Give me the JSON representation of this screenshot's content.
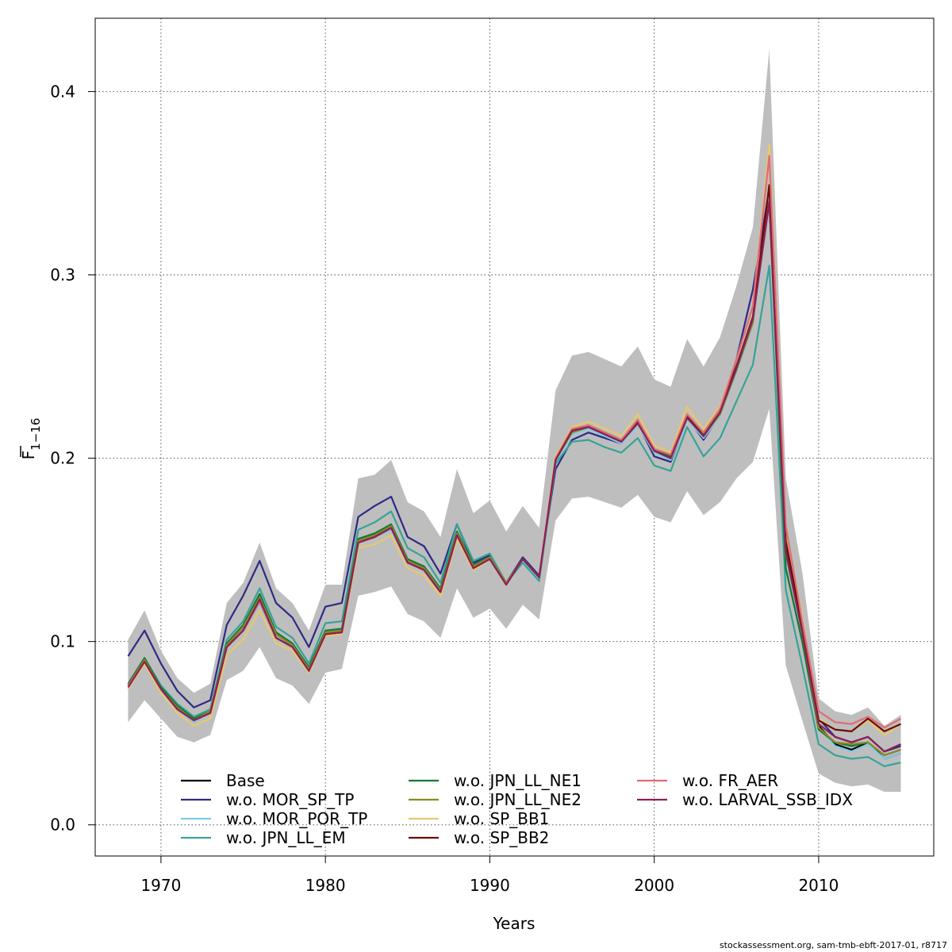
{
  "footer": "stockassessment.org, sam-tmb-ebft-2017-01, r8717",
  "chart_data": {
    "type": "line",
    "xlabel": "Years",
    "ylabel_main": "F",
    "ylabel_sub": "1−16",
    "xlim": [
      1966,
      2017
    ],
    "ylim": [
      -0.017,
      0.44
    ],
    "x_ticks": [
      1970,
      1980,
      1990,
      2000,
      2010
    ],
    "y_ticks": [
      0.0,
      0.1,
      0.2,
      0.3,
      0.4
    ],
    "y_tick_labels": [
      "0.0",
      "0.1",
      "0.2",
      "0.3",
      "0.4"
    ],
    "grid": true,
    "legend_position": "bottom",
    "x": [
      1968,
      1969,
      1970,
      1971,
      1972,
      1973,
      1974,
      1975,
      1976,
      1977,
      1978,
      1979,
      1980,
      1981,
      1982,
      1983,
      1984,
      1985,
      1986,
      1987,
      1988,
      1989,
      1990,
      1991,
      1992,
      1993,
      1994,
      1995,
      1996,
      1997,
      1998,
      1999,
      2000,
      2001,
      2002,
      2003,
      2004,
      2005,
      2006,
      2007,
      2008,
      2009,
      2010,
      2011,
      2012,
      2013,
      2014,
      2015
    ],
    "band": {
      "color": "#bebebe",
      "upper": [
        0.101,
        0.117,
        0.095,
        0.08,
        0.072,
        0.077,
        0.121,
        0.132,
        0.154,
        0.129,
        0.121,
        0.106,
        0.131,
        0.131,
        0.189,
        0.191,
        0.199,
        0.176,
        0.171,
        0.157,
        0.194,
        0.17,
        0.177,
        0.16,
        0.174,
        0.162,
        0.237,
        0.256,
        0.258,
        0.254,
        0.25,
        0.261,
        0.243,
        0.239,
        0.265,
        0.25,
        0.266,
        0.294,
        0.326,
        0.423,
        0.189,
        0.138,
        0.069,
        0.062,
        0.06,
        0.064,
        0.054,
        0.06
      ],
      "lower": [
        0.056,
        0.068,
        0.058,
        0.048,
        0.045,
        0.049,
        0.079,
        0.084,
        0.097,
        0.08,
        0.076,
        0.066,
        0.083,
        0.085,
        0.125,
        0.127,
        0.13,
        0.115,
        0.111,
        0.102,
        0.129,
        0.113,
        0.118,
        0.107,
        0.12,
        0.112,
        0.166,
        0.178,
        0.179,
        0.176,
        0.173,
        0.18,
        0.168,
        0.165,
        0.182,
        0.169,
        0.176,
        0.189,
        0.198,
        0.227,
        0.087,
        0.057,
        0.028,
        0.023,
        0.021,
        0.022,
        0.018,
        0.018
      ]
    },
    "series": [
      {
        "name": "Base",
        "color": "#000000",
        "values": [
          0.076,
          0.09,
          0.074,
          0.064,
          0.057,
          0.062,
          0.098,
          0.108,
          0.124,
          0.104,
          0.098,
          0.085,
          0.105,
          0.106,
          0.155,
          0.158,
          0.163,
          0.144,
          0.14,
          0.128,
          0.159,
          0.141,
          0.146,
          0.132,
          0.145,
          0.135,
          0.199,
          0.214,
          0.217,
          0.213,
          0.209,
          0.219,
          0.204,
          0.2,
          0.222,
          0.212,
          0.224,
          0.248,
          0.274,
          0.349,
          0.148,
          0.105,
          0.054,
          0.044,
          0.041,
          0.045,
          0.036,
          0.039
        ]
      },
      {
        "name": "w.o. MOR_SP_TP",
        "color": "#2d2a87",
        "values": [
          0.092,
          0.106,
          0.088,
          0.073,
          0.064,
          0.068,
          0.109,
          0.125,
          0.144,
          0.121,
          0.113,
          0.097,
          0.119,
          0.121,
          0.168,
          0.174,
          0.179,
          0.157,
          0.152,
          0.137,
          0.164,
          0.143,
          0.147,
          0.132,
          0.146,
          0.136,
          0.194,
          0.21,
          0.214,
          0.211,
          0.208,
          0.219,
          0.201,
          0.198,
          0.222,
          0.21,
          0.224,
          0.254,
          0.292,
          0.347,
          0.152,
          0.108,
          0.058,
          0.048,
          0.045,
          0.048,
          0.04,
          0.043
        ]
      },
      {
        "name": "w.o. MOR_POR_TP",
        "color": "#7ecce8",
        "values": [
          0.074,
          0.088,
          0.073,
          0.063,
          0.056,
          0.061,
          0.097,
          0.106,
          0.121,
          0.102,
          0.097,
          0.084,
          0.105,
          0.106,
          0.155,
          0.157,
          0.161,
          0.143,
          0.139,
          0.127,
          0.158,
          0.14,
          0.145,
          0.131,
          0.144,
          0.134,
          0.198,
          0.213,
          0.216,
          0.212,
          0.208,
          0.218,
          0.203,
          0.199,
          0.221,
          0.211,
          0.223,
          0.247,
          0.273,
          0.346,
          0.147,
          0.104,
          0.053,
          0.043,
          0.04,
          0.044,
          0.036,
          0.039
        ]
      },
      {
        "name": "w.o. JPN_LL_EM",
        "color": "#35a398",
        "values": [
          0.076,
          0.091,
          0.076,
          0.066,
          0.059,
          0.063,
          0.101,
          0.111,
          0.129,
          0.108,
          0.102,
          0.088,
          0.11,
          0.111,
          0.161,
          0.165,
          0.171,
          0.151,
          0.146,
          0.132,
          0.164,
          0.144,
          0.148,
          0.132,
          0.143,
          0.133,
          0.197,
          0.209,
          0.21,
          0.206,
          0.203,
          0.211,
          0.196,
          0.193,
          0.217,
          0.201,
          0.211,
          0.231,
          0.251,
          0.305,
          0.128,
          0.087,
          0.044,
          0.038,
          0.036,
          0.037,
          0.032,
          0.034
        ]
      },
      {
        "name": "w.o. JPN_LL_NE1",
        "color": "#0c7a34",
        "values": [
          0.077,
          0.091,
          0.075,
          0.065,
          0.058,
          0.062,
          0.099,
          0.109,
          0.126,
          0.105,
          0.099,
          0.086,
          0.106,
          0.107,
          0.156,
          0.159,
          0.164,
          0.145,
          0.141,
          0.129,
          0.16,
          0.142,
          0.146,
          0.132,
          0.145,
          0.135,
          0.2,
          0.215,
          0.218,
          0.214,
          0.21,
          0.22,
          0.205,
          0.201,
          0.223,
          0.213,
          0.225,
          0.25,
          0.276,
          0.34,
          0.14,
          0.1,
          0.052,
          0.045,
          0.043,
          0.045,
          0.038,
          0.041
        ]
      },
      {
        "name": "w.o. JPN_LL_NE2",
        "color": "#8c8a24",
        "values": [
          0.076,
          0.09,
          0.074,
          0.064,
          0.057,
          0.062,
          0.098,
          0.108,
          0.124,
          0.104,
          0.098,
          0.085,
          0.105,
          0.106,
          0.155,
          0.158,
          0.163,
          0.144,
          0.14,
          0.128,
          0.159,
          0.141,
          0.146,
          0.132,
          0.145,
          0.135,
          0.199,
          0.214,
          0.217,
          0.213,
          0.209,
          0.219,
          0.204,
          0.2,
          0.222,
          0.212,
          0.224,
          0.248,
          0.274,
          0.349,
          0.148,
          0.105,
          0.053,
          0.045,
          0.044,
          0.045,
          0.038,
          0.041
        ]
      },
      {
        "name": "w.o. SP_BB1",
        "color": "#e6c96a",
        "values": [
          0.074,
          0.088,
          0.072,
          0.061,
          0.054,
          0.058,
          0.093,
          0.101,
          0.117,
          0.099,
          0.095,
          0.083,
          0.103,
          0.104,
          0.151,
          0.153,
          0.158,
          0.14,
          0.136,
          0.125,
          0.156,
          0.139,
          0.145,
          0.131,
          0.145,
          0.135,
          0.201,
          0.217,
          0.22,
          0.216,
          0.212,
          0.224,
          0.207,
          0.203,
          0.228,
          0.216,
          0.228,
          0.254,
          0.283,
          0.371,
          0.16,
          0.113,
          0.058,
          0.052,
          0.051,
          0.057,
          0.049,
          0.055
        ]
      },
      {
        "name": "w.o. SP_BB2",
        "color": "#6e0a0a",
        "values": [
          0.076,
          0.089,
          0.074,
          0.063,
          0.057,
          0.061,
          0.097,
          0.106,
          0.122,
          0.102,
          0.097,
          0.084,
          0.104,
          0.105,
          0.154,
          0.157,
          0.162,
          0.143,
          0.139,
          0.127,
          0.158,
          0.14,
          0.145,
          0.131,
          0.145,
          0.135,
          0.199,
          0.215,
          0.217,
          0.213,
          0.209,
          0.22,
          0.204,
          0.2,
          0.223,
          0.212,
          0.225,
          0.25,
          0.277,
          0.349,
          0.155,
          0.108,
          0.057,
          0.052,
          0.051,
          0.058,
          0.051,
          0.055
        ]
      },
      {
        "name": "w.o. FR_AER",
        "color": "#e06c72",
        "values": [
          0.076,
          0.089,
          0.074,
          0.063,
          0.057,
          0.061,
          0.097,
          0.106,
          0.122,
          0.102,
          0.097,
          0.084,
          0.104,
          0.105,
          0.154,
          0.157,
          0.162,
          0.143,
          0.139,
          0.127,
          0.158,
          0.14,
          0.145,
          0.131,
          0.145,
          0.135,
          0.2,
          0.216,
          0.218,
          0.214,
          0.21,
          0.221,
          0.205,
          0.202,
          0.224,
          0.214,
          0.227,
          0.254,
          0.283,
          0.365,
          0.163,
          0.111,
          0.062,
          0.056,
          0.055,
          0.059,
          0.053,
          0.058
        ]
      },
      {
        "name": "w.o. LARVAL_SSB_IDX",
        "color": "#8e1f55",
        "values": [
          0.075,
          0.089,
          0.074,
          0.063,
          0.057,
          0.061,
          0.097,
          0.106,
          0.123,
          0.102,
          0.097,
          0.084,
          0.104,
          0.105,
          0.154,
          0.157,
          0.162,
          0.143,
          0.139,
          0.127,
          0.158,
          0.14,
          0.145,
          0.131,
          0.145,
          0.135,
          0.199,
          0.215,
          0.217,
          0.213,
          0.209,
          0.219,
          0.204,
          0.2,
          0.222,
          0.212,
          0.225,
          0.249,
          0.276,
          0.34,
          0.149,
          0.105,
          0.055,
          0.048,
          0.045,
          0.048,
          0.04,
          0.044
        ]
      }
    ],
    "legend_columns": [
      [
        "Base",
        "w.o. MOR_SP_TP",
        "w.o. MOR_POR_TP",
        "w.o. JPN_LL_EM"
      ],
      [
        "w.o. JPN_LL_NE1",
        "w.o. JPN_LL_NE2",
        "w.o. SP_BB1",
        "w.o. SP_BB2"
      ],
      [
        "w.o. FR_AER",
        "w.o. LARVAL_SSB_IDX"
      ]
    ]
  }
}
